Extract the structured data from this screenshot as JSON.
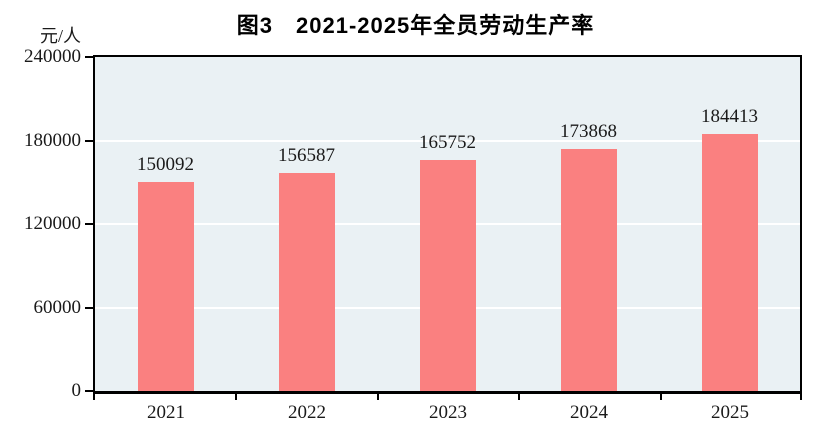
{
  "title": "图3　2021-2025年全员劳动生产率",
  "chart_data": {
    "type": "bar",
    "title": "图3　2021-2025年全员劳动生产率",
    "unit_label": "元/人",
    "categories": [
      "2021",
      "2022",
      "2023",
      "2024",
      "2025"
    ],
    "values": [
      150092,
      156587,
      165752,
      173868,
      184413
    ],
    "data_labels": [
      "150092",
      "156587",
      "165752",
      "173868",
      "184413"
    ],
    "xlabel": "",
    "ylabel": "元/人",
    "ylim": [
      0,
      240000
    ],
    "yticks": [
      0,
      60000,
      120000,
      180000,
      240000
    ],
    "ytick_labels": [
      "0",
      "60000",
      "120000",
      "180000",
      "240000"
    ],
    "grid": "horizontal",
    "legend_position": "none",
    "colors": {
      "bar_fill": "#FA8080",
      "plot_background": "#EAF1F4",
      "gridline": "#FFFFFF",
      "axis": "#000000",
      "text": "#1A1A1A"
    }
  }
}
